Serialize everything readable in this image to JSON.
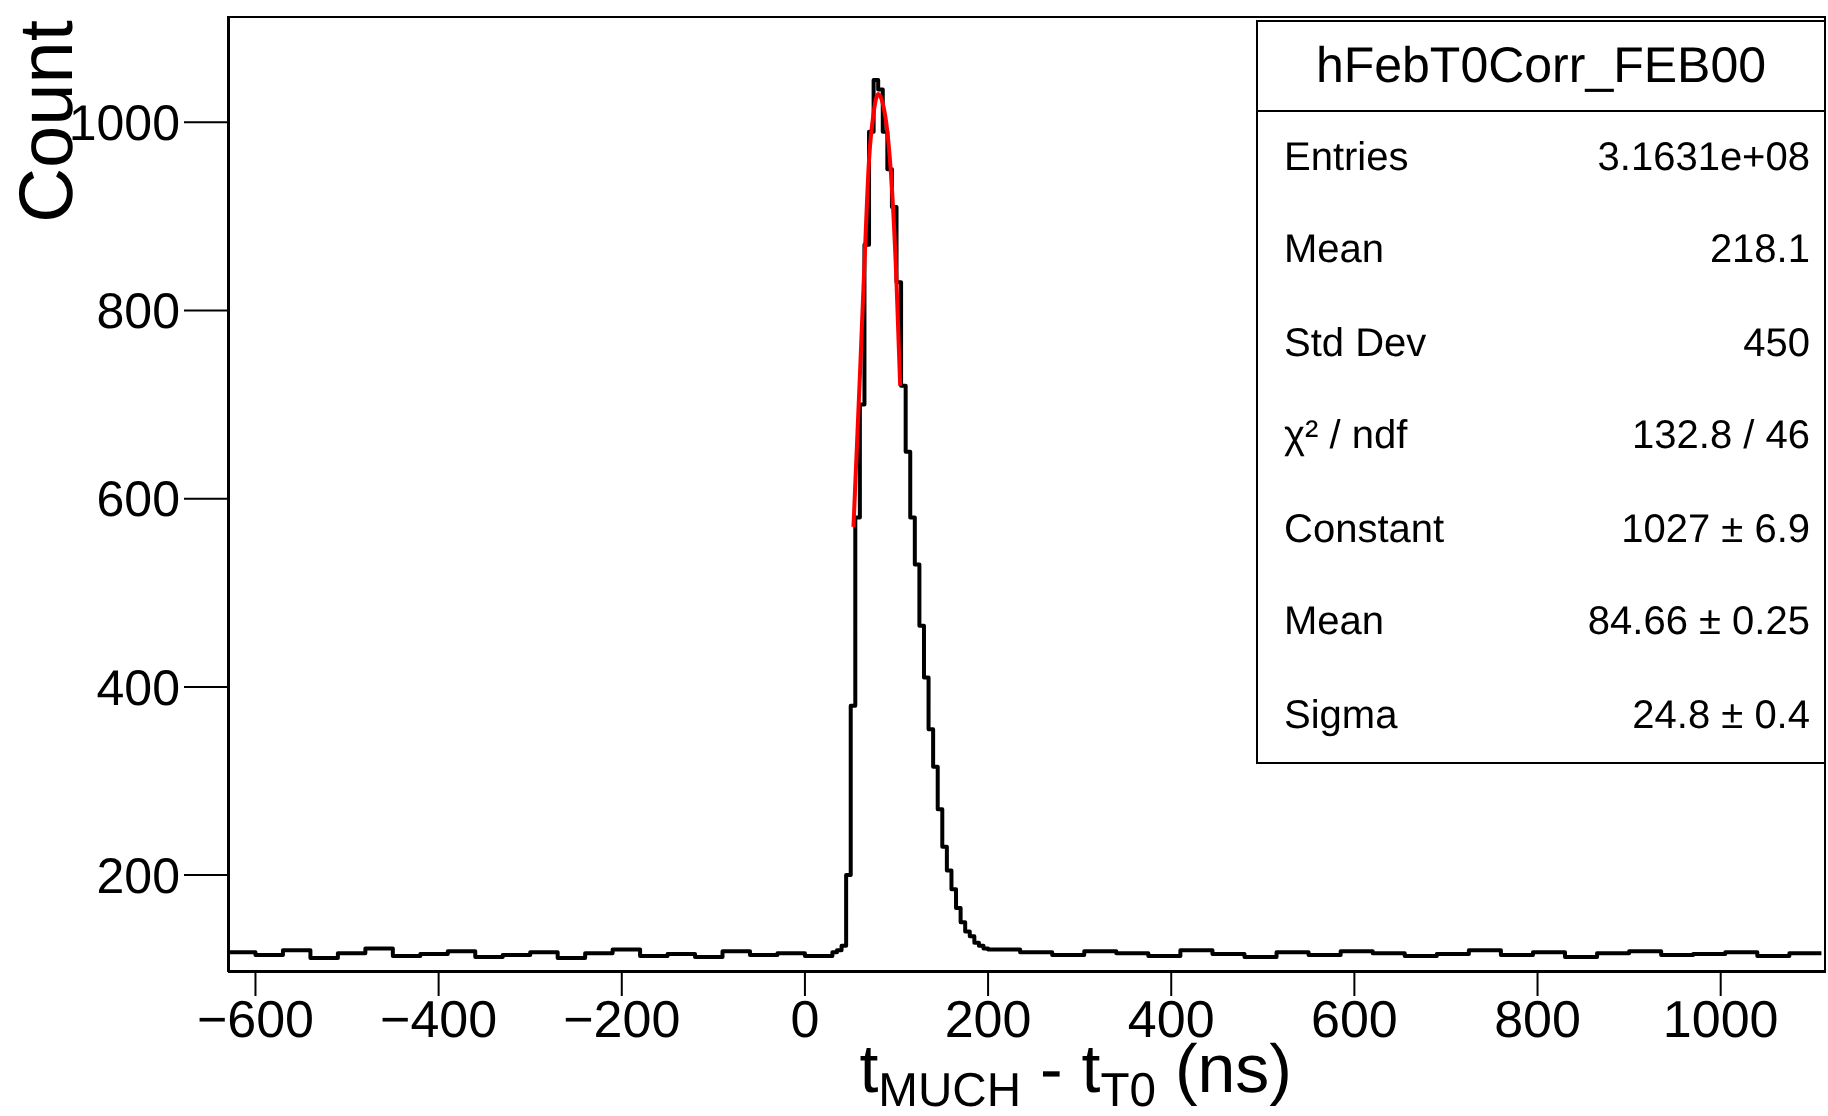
{
  "chart_data": {
    "type": "histogram",
    "title": "hFebT0Corr_FEB00",
    "xlabel": "t$_{MUCH}$ - t$_{T0}$  (ns)",
    "ylabel": "Count",
    "xlim": [
      -630,
      1115
    ],
    "ylim": [
      97,
      1113
    ],
    "xticks": [
      -600,
      -400,
      -200,
      0,
      200,
      400,
      600,
      800,
      1000
    ],
    "yticks": [
      200,
      400,
      600,
      800,
      1000
    ],
    "series": [
      {
        "type": "histogram",
        "color": "#000000",
        "bins": [
          -630,
          -600,
          -570,
          -540,
          -510,
          -480,
          -450,
          -420,
          -390,
          -360,
          -330,
          -300,
          -270,
          -240,
          -210,
          -180,
          -150,
          -120,
          -90,
          -60,
          -30,
          0,
          30,
          35,
          40,
          45,
          50,
          55,
          60,
          65,
          70,
          75,
          80,
          85,
          90,
          95,
          100,
          105,
          110,
          115,
          120,
          125,
          130,
          135,
          140,
          145,
          150,
          155,
          160,
          165,
          170,
          175,
          180,
          185,
          190,
          195,
          200,
          235,
          270,
          305,
          340,
          375,
          410,
          445,
          480,
          515,
          550,
          585,
          620,
          655,
          690,
          725,
          760,
          795,
          830,
          865,
          900,
          935,
          970,
          1005,
          1040,
          1075,
          1110
        ],
        "values": [
          118,
          115,
          120,
          112,
          117,
          122,
          114,
          116,
          119,
          113,
          115,
          118,
          112,
          117,
          121,
          114,
          116,
          113,
          119,
          115,
          117,
          114,
          118,
          120,
          125,
          200,
          380,
          580,
          700,
          870,
          990,
          1045,
          1035,
          990,
          950,
          910,
          830,
          720,
          650,
          580,
          530,
          465,
          410,
          355,
          315,
          270,
          230,
          205,
          185,
          165,
          150,
          140,
          135,
          128,
          125,
          122,
          121,
          118,
          115,
          119,
          117,
          114,
          120,
          116,
          113,
          118,
          115,
          119,
          117,
          114,
          116,
          120,
          115,
          118,
          113,
          117,
          119,
          115,
          116,
          118,
          114,
          117
        ]
      },
      {
        "type": "line",
        "color": "#ff0000",
        "x": [
          53,
          60,
          65,
          70,
          75,
          80,
          85,
          90,
          95,
          100,
          104
        ],
        "values": [
          570,
          730,
          850,
          960,
          1010,
          1030,
          1020,
          990,
          930,
          830,
          720
        ]
      }
    ],
    "annotations": [
      "Entries",
      "3.1631e+08",
      "Mean",
      "218.1",
      "Std Dev",
      "450",
      "χ² / ndf",
      "132.8 / 46",
      "Constant",
      "1027 ± 6.9",
      "Mean",
      "84.66 ± 0.25",
      "Sigma",
      "24.8 ± 0.4"
    ]
  }
}
